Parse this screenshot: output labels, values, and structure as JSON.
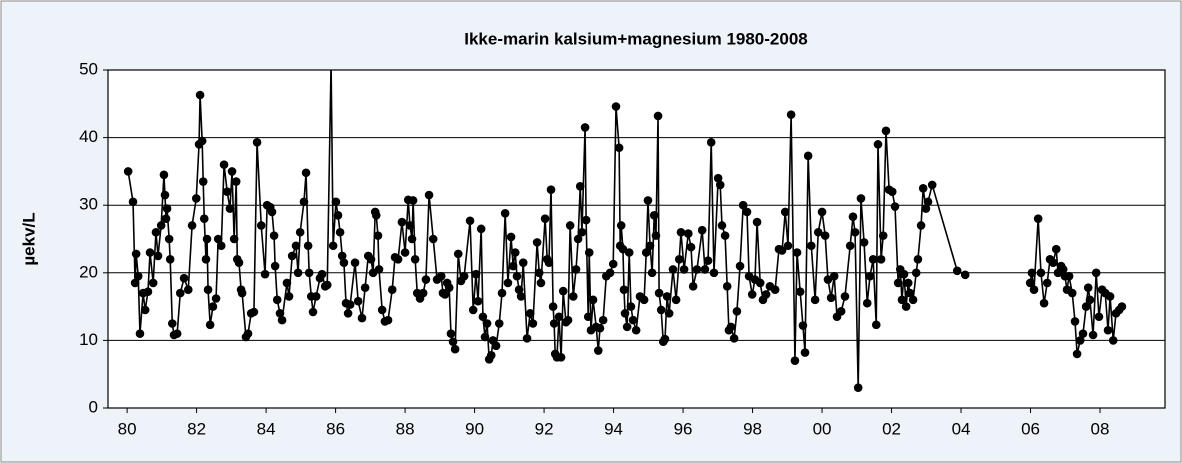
{
  "chart_data": {
    "type": "line",
    "title": "Ikke-marin kalsium+magnesium 1980-2008",
    "y_label": "µekv/L",
    "color": "#000000",
    "grid": true,
    "xlim": [
      1979.45,
      2009.87
    ],
    "ylim": [
      0,
      50
    ],
    "yticks": [
      0,
      10,
      20,
      30,
      40,
      50
    ],
    "xticks": [
      {
        "value": 1980,
        "label": "80"
      },
      {
        "value": 1982,
        "label": "82"
      },
      {
        "value": 1984,
        "label": "84"
      },
      {
        "value": 1986,
        "label": "86"
      },
      {
        "value": 1988,
        "label": "88"
      },
      {
        "value": 1990,
        "label": "90"
      },
      {
        "value": 1992,
        "label": "92"
      },
      {
        "value": 1994,
        "label": "94"
      },
      {
        "value": 1996,
        "label": "96"
      },
      {
        "value": 1998,
        "label": "98"
      },
      {
        "value": 2000,
        "label": "00"
      },
      {
        "value": 2002,
        "label": "02"
      },
      {
        "value": 2004,
        "label": "04"
      },
      {
        "value": 2006,
        "label": "06"
      },
      {
        "value": 2008,
        "label": "08"
      }
    ],
    "x": [
      1980.03,
      1980.17,
      1980.23,
      1980.26,
      1980.32,
      1980.37,
      1980.46,
      1980.52,
      1980.6,
      1980.66,
      1980.75,
      1980.83,
      1980.89,
      1980.98,
      1981.06,
      1981.09,
      1981.12,
      1981.15,
      1981.21,
      1981.24,
      1981.3,
      1981.35,
      1981.44,
      1981.53,
      1981.64,
      1981.76,
      1981.87,
      1981.99,
      1982.07,
      1982.1,
      1982.16,
      1982.19,
      1982.22,
      1982.27,
      1982.3,
      1982.33,
      1982.39,
      1982.47,
      1982.56,
      1982.62,
      1982.71,
      1982.79,
      1982.88,
      1982.96,
      1983.02,
      1983.08,
      1983.14,
      1983.17,
      1983.22,
      1983.28,
      1983.31,
      1983.42,
      1983.48,
      1983.57,
      1983.65,
      1983.74,
      1983.86,
      1983.97,
      1984.03,
      1984.12,
      1984.17,
      1984.23,
      1984.26,
      1984.32,
      1984.4,
      1984.46,
      1984.6,
      1984.66,
      1984.75,
      1984.86,
      1984.92,
      1984.98,
      1985.09,
      1985.15,
      1985.21,
      1985.24,
      1985.3,
      1985.35,
      1985.44,
      1985.55,
      1985.61,
      1985.7,
      1985.76,
      1985.87,
      1985.93,
      1986.01,
      1986.07,
      1986.13,
      1986.19,
      1986.24,
      1986.3,
      1986.36,
      1986.42,
      1986.56,
      1986.65,
      1986.76,
      1986.85,
      1986.94,
      1987.02,
      1987.08,
      1987.14,
      1987.17,
      1987.22,
      1987.25,
      1987.34,
      1987.42,
      1987.51,
      1987.63,
      1987.71,
      1987.8,
      1987.91,
      1988.0,
      1988.09,
      1988.14,
      1988.2,
      1988.23,
      1988.29,
      1988.35,
      1988.43,
      1988.52,
      1988.6,
      1988.69,
      1988.81,
      1988.92,
      1989.04,
      1989.09,
      1989.15,
      1989.21,
      1989.27,
      1989.32,
      1989.38,
      1989.44,
      1989.53,
      1989.61,
      1989.7,
      1989.87,
      1989.96,
      1990.04,
      1990.1,
      1990.19,
      1990.24,
      1990.3,
      1990.36,
      1990.42,
      1990.48,
      1990.53,
      1990.62,
      1990.71,
      1990.79,
      1990.88,
      1990.96,
      1991.05,
      1991.11,
      1991.17,
      1991.22,
      1991.28,
      1991.34,
      1991.4,
      1991.51,
      1991.6,
      1991.68,
      1991.8,
      1991.86,
      1991.91,
      1992.03,
      1992.09,
      1992.14,
      1992.2,
      1992.26,
      1992.29,
      1992.32,
      1992.37,
      1992.43,
      1992.49,
      1992.55,
      1992.63,
      1992.69,
      1992.75,
      1992.84,
      1992.92,
      1992.98,
      1993.04,
      1993.09,
      1993.18,
      1993.21,
      1993.27,
      1993.3,
      1993.35,
      1993.41,
      1993.5,
      1993.56,
      1993.61,
      1993.7,
      1993.79,
      1993.9,
      1993.99,
      1994.07,
      1994.16,
      1994.19,
      1994.22,
      1994.27,
      1994.3,
      1994.33,
      1994.39,
      1994.45,
      1994.5,
      1994.56,
      1994.65,
      1994.76,
      1994.88,
      1994.94,
      1994.99,
      1995.05,
      1995.11,
      1995.17,
      1995.22,
      1995.28,
      1995.31,
      1995.37,
      1995.43,
      1995.48,
      1995.54,
      1995.6,
      1995.71,
      1995.8,
      1995.89,
      1995.94,
      1996.03,
      1996.15,
      1996.23,
      1996.29,
      1996.4,
      1996.55,
      1996.63,
      1996.72,
      1996.81,
      1996.89,
      1997.01,
      1997.07,
      1997.12,
      1997.21,
      1997.27,
      1997.32,
      1997.38,
      1997.47,
      1997.55,
      1997.64,
      1997.73,
      1997.84,
      1997.9,
      1997.99,
      1998.07,
      1998.13,
      1998.22,
      1998.3,
      1998.39,
      1998.5,
      1998.65,
      1998.76,
      1998.85,
      1998.94,
      1999.02,
      1999.11,
      1999.22,
      1999.28,
      1999.37,
      1999.45,
      1999.51,
      1999.6,
      1999.69,
      1999.8,
      1999.89,
      2000.0,
      2000.09,
      2000.17,
      2000.26,
      2000.35,
      2000.43,
      2000.55,
      2000.66,
      2000.81,
      2000.89,
      2000.95,
      2001.04,
      2001.12,
      2001.21,
      2001.3,
      2001.38,
      2001.47,
      2001.56,
      2001.61,
      2001.7,
      2001.76,
      2001.84,
      2001.93,
      2002.02,
      2002.1,
      2002.19,
      2002.25,
      2002.3,
      2002.36,
      2002.42,
      2002.48,
      2002.53,
      2002.62,
      2002.71,
      2002.76,
      2002.85,
      2002.91,
      2002.99,
      2003.05,
      2003.17,
      2003.89,
      2004.12,
      2005.0,
      2005.99,
      2006.04,
      2006.1,
      2006.22,
      2006.3,
      2006.39,
      2006.48,
      2006.56,
      2006.65,
      2006.74,
      2006.79,
      2006.88,
      2006.94,
      2006.99,
      2007.05,
      2007.11,
      2007.2,
      2007.28,
      2007.34,
      2007.43,
      2007.51,
      2007.6,
      2007.66,
      2007.71,
      2007.8,
      2007.89,
      2007.97,
      2008.06,
      2008.15,
      2008.23,
      2008.29,
      2008.38,
      2008.46,
      2008.55,
      2008.63
    ],
    "values": [
      35,
      30.5,
      18.5,
      22.8,
      19.5,
      11,
      17,
      14.5,
      17.2,
      23,
      18.5,
      26,
      22.5,
      27,
      34.5,
      31.5,
      28,
      29.5,
      25,
      22,
      12.5,
      10.8,
      11,
      17,
      19.2,
      17.5,
      27,
      31,
      39,
      46.3,
      39.5,
      33.5,
      28,
      22,
      25,
      17.5,
      12.3,
      15,
      16.2,
      25,
      24,
      36,
      32,
      29.5,
      35,
      25,
      33.5,
      22,
      21.5,
      17.5,
      17,
      10.5,
      11,
      14,
      14.2,
      39.3,
      27,
      19.8,
      30,
      29.7,
      29,
      25.5,
      21,
      16,
      14,
      13,
      18.5,
      16.5,
      22.5,
      24,
      20,
      26,
      30.5,
      34.8,
      24,
      20,
      16.5,
      14.2,
      16.5,
      19.2,
      19.8,
      18,
      18.2,
      51,
      24,
      30.5,
      28.5,
      26,
      22.5,
      21.5,
      15.5,
      14,
      15.3,
      21.5,
      15.8,
      13.3,
      17.8,
      22.5,
      22,
      20,
      29,
      28.5,
      25.5,
      20.5,
      14.5,
      12.8,
      13,
      17.5,
      22.3,
      22,
      27.5,
      23,
      30.8,
      27,
      25,
      30.7,
      22,
      17,
      16.2,
      17,
      19,
      31.5,
      25,
      19,
      19.5,
      17,
      16.8,
      18.5,
      17.8,
      11,
      9.8,
      8.7,
      22.8,
      18.8,
      19.5,
      27.7,
      14.5,
      19.8,
      15.8,
      26.5,
      13.5,
      10.5,
      12.5,
      7.2,
      7.8,
      10,
      9.2,
      12.5,
      17,
      28.8,
      18.5,
      25.3,
      21,
      23,
      19.5,
      17.5,
      16.5,
      21.5,
      10.3,
      14,
      12.5,
      24.5,
      20,
      18.5,
      28,
      22,
      21.5,
      32.3,
      15,
      12.5,
      8,
      7.5,
      13.5,
      7.5,
      17.3,
      12.7,
      13,
      27,
      16.5,
      20.5,
      25,
      32.8,
      26,
      41.5,
      27.8,
      13.5,
      23,
      11.5,
      16,
      12,
      8.5,
      11.8,
      13,
      19.5,
      20,
      21.3,
      44.6,
      38.5,
      24,
      27,
      23.5,
      17.5,
      14,
      12,
      23,
      15,
      13,
      11.5,
      16.5,
      16,
      23,
      30.7,
      24,
      20,
      28.5,
      25.5,
      43.2,
      17,
      14.5,
      9.8,
      10.2,
      16.5,
      14,
      20.5,
      16,
      22,
      26,
      20.5,
      25.8,
      23.8,
      18,
      20.5,
      26.3,
      20.5,
      21.8,
      39.3,
      20,
      34,
      33,
      27,
      25.5,
      18,
      11.5,
      12,
      10.3,
      14.3,
      21,
      30,
      29,
      19.5,
      16.8,
      19,
      27.5,
      18.5,
      16,
      16.8,
      18,
      17.5,
      23.5,
      23.3,
      29,
      24,
      43.4,
      7,
      23,
      17.2,
      12.2,
      8.2,
      37.3,
      24,
      16,
      26,
      29,
      25.5,
      19,
      16.3,
      19.5,
      13.5,
      14.3,
      16.5,
      24,
      28.3,
      26,
      3,
      31,
      24.5,
      15.5,
      19.5,
      22,
      12.3,
      39,
      22,
      25.5,
      41,
      32.3,
      32,
      29.8,
      18.5,
      20.5,
      16,
      19.8,
      15,
      18.5,
      17,
      16,
      20,
      22,
      27,
      32.5,
      29.5,
      30.5,
      33,
      20.3,
      19.7,
      null,
      18.5,
      20,
      17.5,
      28,
      20,
      15.5,
      18.5,
      22,
      21.5,
      23.5,
      20,
      21,
      20.5,
      19.5,
      17.5,
      19.5,
      17,
      12.8,
      8,
      10,
      11,
      15,
      17.8,
      16,
      10.8,
      20,
      13.5,
      17.5,
      17,
      11.5,
      16.5,
      10,
      14,
      14.5,
      15
    ]
  }
}
